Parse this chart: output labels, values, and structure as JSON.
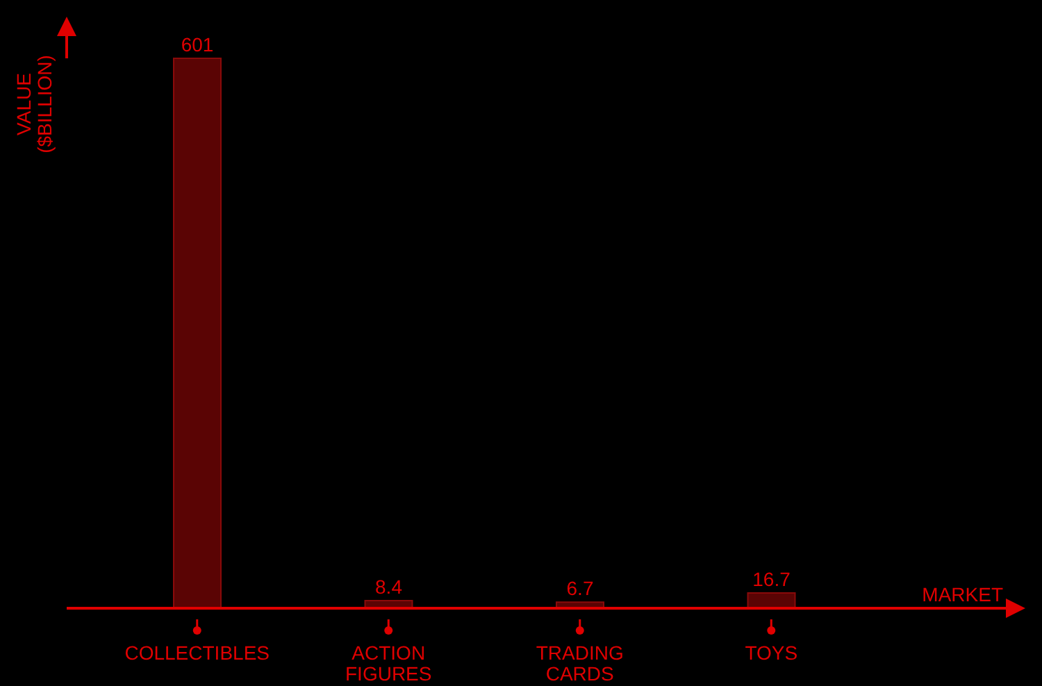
{
  "chart_data": {
    "type": "bar",
    "categories": [
      "COLLECTIBLES",
      "ACTION FIGURES",
      "TRADING CARDS",
      "TOYS"
    ],
    "values": [
      601,
      8.4,
      6.7,
      16.7
    ],
    "color": "#5a0404",
    "xlabel": "MARKET",
    "ylabel": "VALUE ($BILLION)",
    "data_labels": true,
    "grid": false
  }
}
